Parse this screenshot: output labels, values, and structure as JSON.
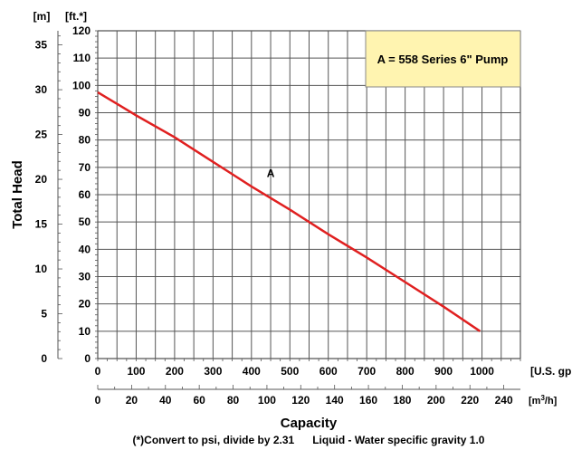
{
  "chart_data": {
    "type": "line",
    "units": {
      "meters": "[m]",
      "feet": "[ft.*]",
      "gpm": "[U.S. gpm]",
      "m3h_prefix": "[m",
      "m3h_sup": "3",
      "m3h_suffix": "/h]"
    },
    "ylabel": "Total Head",
    "xlabel": "Capacity",
    "legend_text": "A = 558 Series 6\" Pump",
    "legend_position": "top-right",
    "legend_color": "#fff4b0",
    "footnote": "(*)Convert to psi, divide by 2.31      Liquid - Water specific gravity 1.0",
    "grid": true,
    "xlim_gpm": [
      0,
      1100
    ],
    "ylim_ft": [
      0,
      120
    ],
    "ft_ticks": [
      "0",
      "10",
      "20",
      "30",
      "40",
      "50",
      "60",
      "70",
      "80",
      "90",
      "100",
      "110",
      "120"
    ],
    "m_ticks": [
      "0",
      "5",
      "10",
      "15",
      "20",
      "25",
      "30",
      "35"
    ],
    "gpm_ticks": [
      "0",
      "100",
      "200",
      "300",
      "400",
      "500",
      "600",
      "700",
      "800",
      "900",
      "1000"
    ],
    "m3h_ticks": [
      "0",
      "20",
      "40",
      "60",
      "80",
      "100",
      "120",
      "140",
      "160",
      "180",
      "200",
      "220",
      "240"
    ],
    "series": [
      {
        "name": "A",
        "color": "#e02020",
        "x": [
          0,
          100,
          200,
          300,
          400,
          500,
          600,
          700,
          800,
          900,
          995
        ],
        "y": [
          97.5,
          89,
          81,
          72,
          63,
          54.5,
          45.5,
          37,
          28,
          19,
          10
        ]
      }
    ]
  }
}
